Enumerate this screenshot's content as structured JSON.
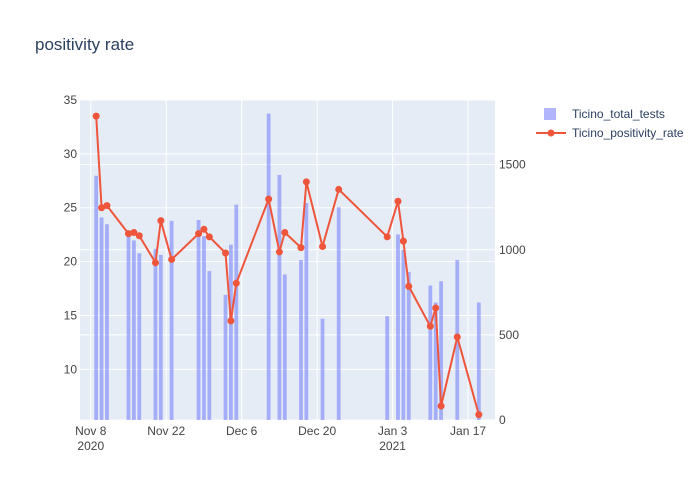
{
  "chart_data": {
    "type": "bar+line",
    "title": "positivity rate",
    "x_ticks": [
      {
        "date": "2020-11-08",
        "label": "Nov 8",
        "sublabel": "2020"
      },
      {
        "date": "2020-11-22",
        "label": "Nov 22",
        "sublabel": ""
      },
      {
        "date": "2020-12-06",
        "label": "Dec 6",
        "sublabel": ""
      },
      {
        "date": "2020-12-20",
        "label": "Dec 20",
        "sublabel": ""
      },
      {
        "date": "2021-01-03",
        "label": "Jan 3",
        "sublabel": "2021"
      },
      {
        "date": "2021-01-17",
        "label": "Jan 17",
        "sublabel": ""
      }
    ],
    "x_range": [
      "2020-11-06",
      "2021-01-22"
    ],
    "y_left": {
      "range": [
        5.3,
        35
      ],
      "ticks": [
        10,
        15,
        20,
        25,
        30,
        35
      ]
    },
    "y_right": {
      "range": [
        0,
        1880
      ],
      "ticks": [
        0,
        500,
        1000,
        1500
      ]
    },
    "grid": true,
    "legend_position": "top-right",
    "series": [
      {
        "name": "Ticino_total_tests",
        "type": "bar",
        "axis": "right",
        "color": "#636efa",
        "opacity": 0.5,
        "points": [
          {
            "x": "2020-11-09",
            "y": 1435
          },
          {
            "x": "2020-11-10",
            "y": 1190
          },
          {
            "x": "2020-11-11",
            "y": 1150
          },
          {
            "x": "2020-11-15",
            "y": 1100
          },
          {
            "x": "2020-11-16",
            "y": 1055
          },
          {
            "x": "2020-11-17",
            "y": 980
          },
          {
            "x": "2020-11-20",
            "y": 1005
          },
          {
            "x": "2020-11-21",
            "y": 970
          },
          {
            "x": "2020-11-23",
            "y": 1170
          },
          {
            "x": "2020-11-28",
            "y": 1175
          },
          {
            "x": "2020-11-29",
            "y": 1080
          },
          {
            "x": "2020-11-30",
            "y": 875
          },
          {
            "x": "2020-12-03",
            "y": 735
          },
          {
            "x": "2020-12-04",
            "y": 1030
          },
          {
            "x": "2020-12-05",
            "y": 1265
          },
          {
            "x": "2020-12-11",
            "y": 1800
          },
          {
            "x": "2020-12-13",
            "y": 1440
          },
          {
            "x": "2020-12-14",
            "y": 855
          },
          {
            "x": "2020-12-17",
            "y": 940
          },
          {
            "x": "2020-12-18",
            "y": 1275
          },
          {
            "x": "2020-12-21",
            "y": 595
          },
          {
            "x": "2020-12-24",
            "y": 1250
          },
          {
            "x": "2021-01-02",
            "y": 610
          },
          {
            "x": "2021-01-04",
            "y": 1090
          },
          {
            "x": "2021-01-05",
            "y": 1000
          },
          {
            "x": "2021-01-06",
            "y": 870
          },
          {
            "x": "2021-01-10",
            "y": 790
          },
          {
            "x": "2021-01-11",
            "y": 690
          },
          {
            "x": "2021-01-12",
            "y": 815
          },
          {
            "x": "2021-01-15",
            "y": 940
          },
          {
            "x": "2021-01-19",
            "y": 690
          }
        ]
      },
      {
        "name": "Ticino_positivity_rate",
        "type": "line",
        "axis": "left",
        "color": "#ef553b",
        "points": [
          {
            "x": "2020-11-09",
            "y": 33.5
          },
          {
            "x": "2020-11-10",
            "y": 25.0
          },
          {
            "x": "2020-11-11",
            "y": 25.2
          },
          {
            "x": "2020-11-15",
            "y": 22.6
          },
          {
            "x": "2020-11-16",
            "y": 22.7
          },
          {
            "x": "2020-11-17",
            "y": 22.4
          },
          {
            "x": "2020-11-20",
            "y": 19.9
          },
          {
            "x": "2020-11-21",
            "y": 23.8
          },
          {
            "x": "2020-11-23",
            "y": 20.2
          },
          {
            "x": "2020-11-28",
            "y": 22.6
          },
          {
            "x": "2020-11-29",
            "y": 23.0
          },
          {
            "x": "2020-11-30",
            "y": 22.3
          },
          {
            "x": "2020-12-03",
            "y": 20.8
          },
          {
            "x": "2020-12-04",
            "y": 14.5
          },
          {
            "x": "2020-12-05",
            "y": 18.0
          },
          {
            "x": "2020-12-11",
            "y": 25.8
          },
          {
            "x": "2020-12-13",
            "y": 20.9
          },
          {
            "x": "2020-12-14",
            "y": 22.7
          },
          {
            "x": "2020-12-17",
            "y": 21.3
          },
          {
            "x": "2020-12-18",
            "y": 27.4
          },
          {
            "x": "2020-12-21",
            "y": 21.4
          },
          {
            "x": "2020-12-24",
            "y": 26.7
          },
          {
            "x": "2021-01-02",
            "y": 22.3
          },
          {
            "x": "2021-01-04",
            "y": 25.6
          },
          {
            "x": "2021-01-05",
            "y": 21.9
          },
          {
            "x": "2021-01-06",
            "y": 17.7
          },
          {
            "x": "2021-01-10",
            "y": 14.0
          },
          {
            "x": "2021-01-11",
            "y": 15.7
          },
          {
            "x": "2021-01-12",
            "y": 6.6
          },
          {
            "x": "2021-01-15",
            "y": 13.0
          },
          {
            "x": "2021-01-19",
            "y": 5.8
          }
        ]
      }
    ]
  }
}
